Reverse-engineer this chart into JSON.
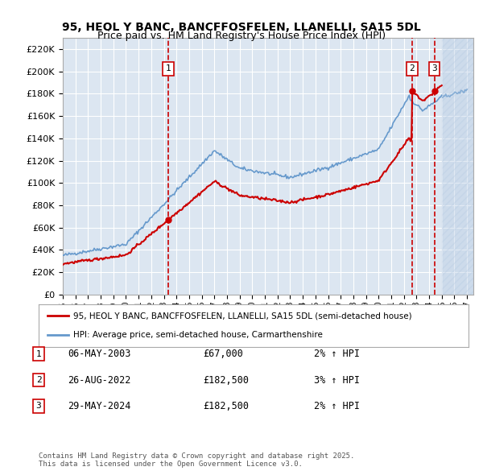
{
  "title_line1": "95, HEOL Y BANC, BANCFFOSFELEN, LLANELLI, SA15 5DL",
  "title_line2": "Price paid vs. HM Land Registry's House Price Index (HPI)",
  "ylabel_ticks": [
    0,
    20000,
    40000,
    60000,
    80000,
    100000,
    120000,
    140000,
    160000,
    180000,
    200000,
    220000
  ],
  "ylim": [
    0,
    230000
  ],
  "xlim_start": 1995.0,
  "xlim_end": 2027.5,
  "xticks": [
    1995,
    1996,
    1997,
    1998,
    1999,
    2000,
    2001,
    2002,
    2003,
    2004,
    2005,
    2006,
    2007,
    2008,
    2009,
    2010,
    2011,
    2012,
    2013,
    2014,
    2015,
    2016,
    2017,
    2018,
    2019,
    2020,
    2021,
    2022,
    2023,
    2024,
    2025,
    2026,
    2027
  ],
  "sale_dates": [
    2003.35,
    2022.65,
    2024.41
  ],
  "sale_prices": [
    67000,
    182500,
    182500
  ],
  "sale_labels": [
    "1",
    "2",
    "3"
  ],
  "legend_label_red": "95, HEOL Y BANC, BANCFFOSFELEN, LLANELLI, SA15 5DL (semi-detached house)",
  "legend_label_blue": "HPI: Average price, semi-detached house, Carmarthenshire",
  "table_rows": [
    [
      "1",
      "06-MAY-2003",
      "£67,000",
      "2% ↑ HPI"
    ],
    [
      "2",
      "26-AUG-2022",
      "£182,500",
      "3% ↑ HPI"
    ],
    [
      "3",
      "29-MAY-2024",
      "£182,500",
      "2% ↑ HPI"
    ]
  ],
  "footnote": "Contains HM Land Registry data © Crown copyright and database right 2025.\nThis data is licensed under the Open Government Licence v3.0.",
  "bg_color": "#dce6f1",
  "plot_bg_color": "#dce6f1",
  "hatch_color": "#b8cce4",
  "red_color": "#cc0000",
  "blue_color": "#6699cc",
  "grid_color": "#ffffff",
  "future_shade_start": 2025.0
}
